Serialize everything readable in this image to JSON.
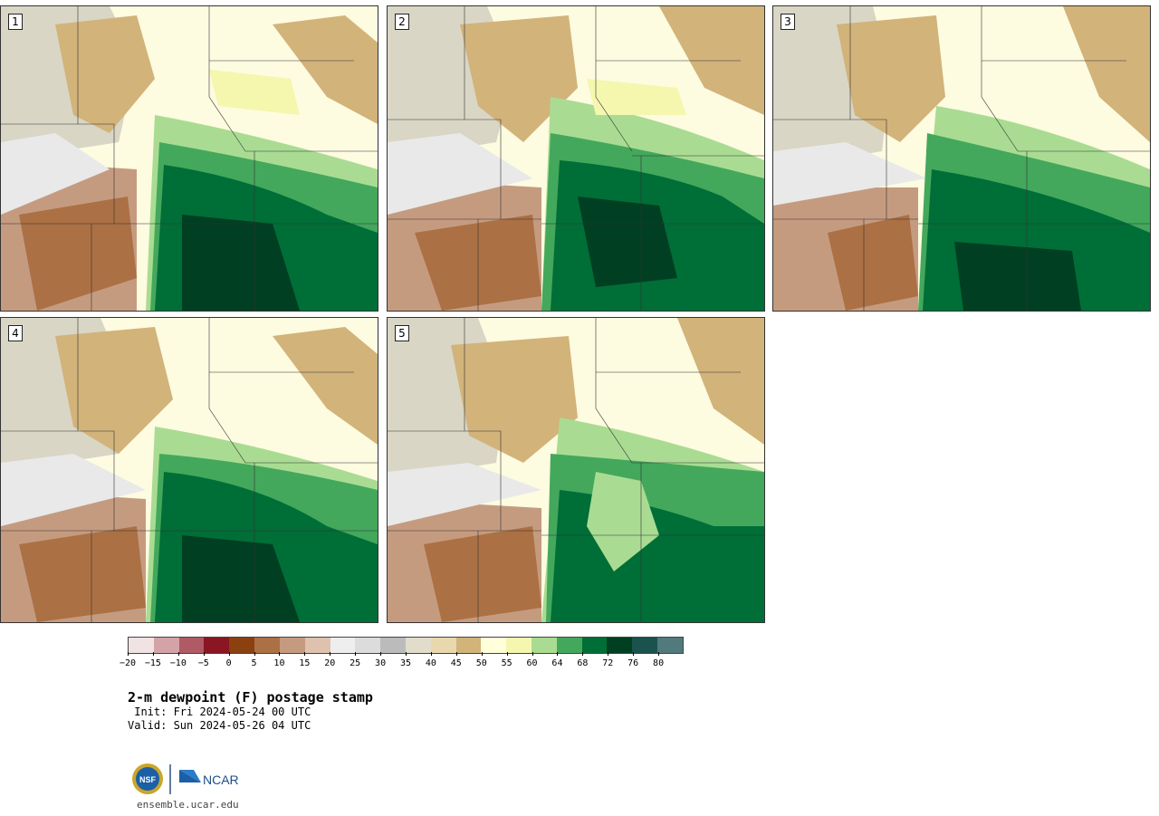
{
  "panels": [
    {
      "label": "1"
    },
    {
      "label": "2"
    },
    {
      "label": "3"
    },
    {
      "label": "4"
    },
    {
      "label": "5"
    }
  ],
  "colorbar": {
    "colors": [
      "#f1e3e3",
      "#d4a3a8",
      "#b05a66",
      "#8a1523",
      "#8b4010",
      "#ab7044",
      "#c59b80",
      "#dfc2ae",
      "#eeeeee",
      "#dcdcdc",
      "#bbbbbb",
      "#e2dccb",
      "#e9d7ae",
      "#d2b37a",
      "#ffffd9",
      "#f4f7ad",
      "#a9dc92",
      "#43a85c",
      "#006e37",
      "#003f22",
      "#1c524e",
      "#507a7c"
    ],
    "ticks": [
      "−20",
      "−15",
      "−10",
      "−5",
      "0",
      "5",
      "10",
      "15",
      "20",
      "25",
      "30",
      "35",
      "40",
      "45",
      "50",
      "55",
      "60",
      "64",
      "68",
      "72",
      "76",
      "80"
    ]
  },
  "title": "2-m dewpoint (F) postage stamp",
  "init": " Init: Fri 2024-05-24 00 UTC",
  "valid": "Valid: Sun 2024-05-26 04 UTC",
  "logos": {
    "nsf": "NSF",
    "ncar": "NCAR"
  },
  "website": "ensemble.ucar.edu"
}
